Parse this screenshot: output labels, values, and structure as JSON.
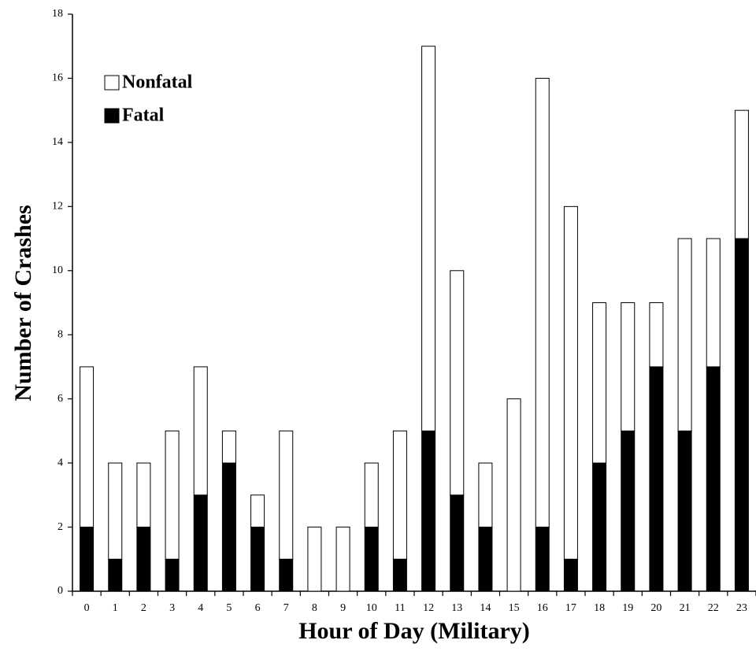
{
  "chart_data": {
    "type": "stacked-bar",
    "x_label": "Hour of Day (Military)",
    "y_label": "Number of Crashes",
    "categories": [
      "0",
      "1",
      "2",
      "3",
      "4",
      "5",
      "6",
      "7",
      "8",
      "9",
      "10",
      "11",
      "12",
      "13",
      "14",
      "15",
      "16",
      "17",
      "18",
      "19",
      "20",
      "21",
      "22",
      "23"
    ],
    "series": [
      {
        "name": "Fatal",
        "color": "#000000",
        "values": [
          2,
          1,
          2,
          1,
          3,
          4,
          2,
          1,
          0,
          0,
          2,
          1,
          5,
          3,
          2,
          0,
          2,
          1,
          4,
          5,
          7,
          5,
          7,
          11
        ]
      },
      {
        "name": "Nonfatal",
        "color": "#ffffff",
        "values": [
          5,
          3,
          2,
          4,
          4,
          1,
          1,
          4,
          2,
          2,
          2,
          4,
          12,
          7,
          2,
          6,
          14,
          11,
          5,
          4,
          2,
          6,
          4,
          4
        ]
      }
    ],
    "ylim": [
      0,
      18
    ],
    "yticks": [
      0,
      2,
      4,
      6,
      8,
      10,
      12,
      14,
      16,
      18
    ],
    "grid": false,
    "legend": "upper-left"
  }
}
